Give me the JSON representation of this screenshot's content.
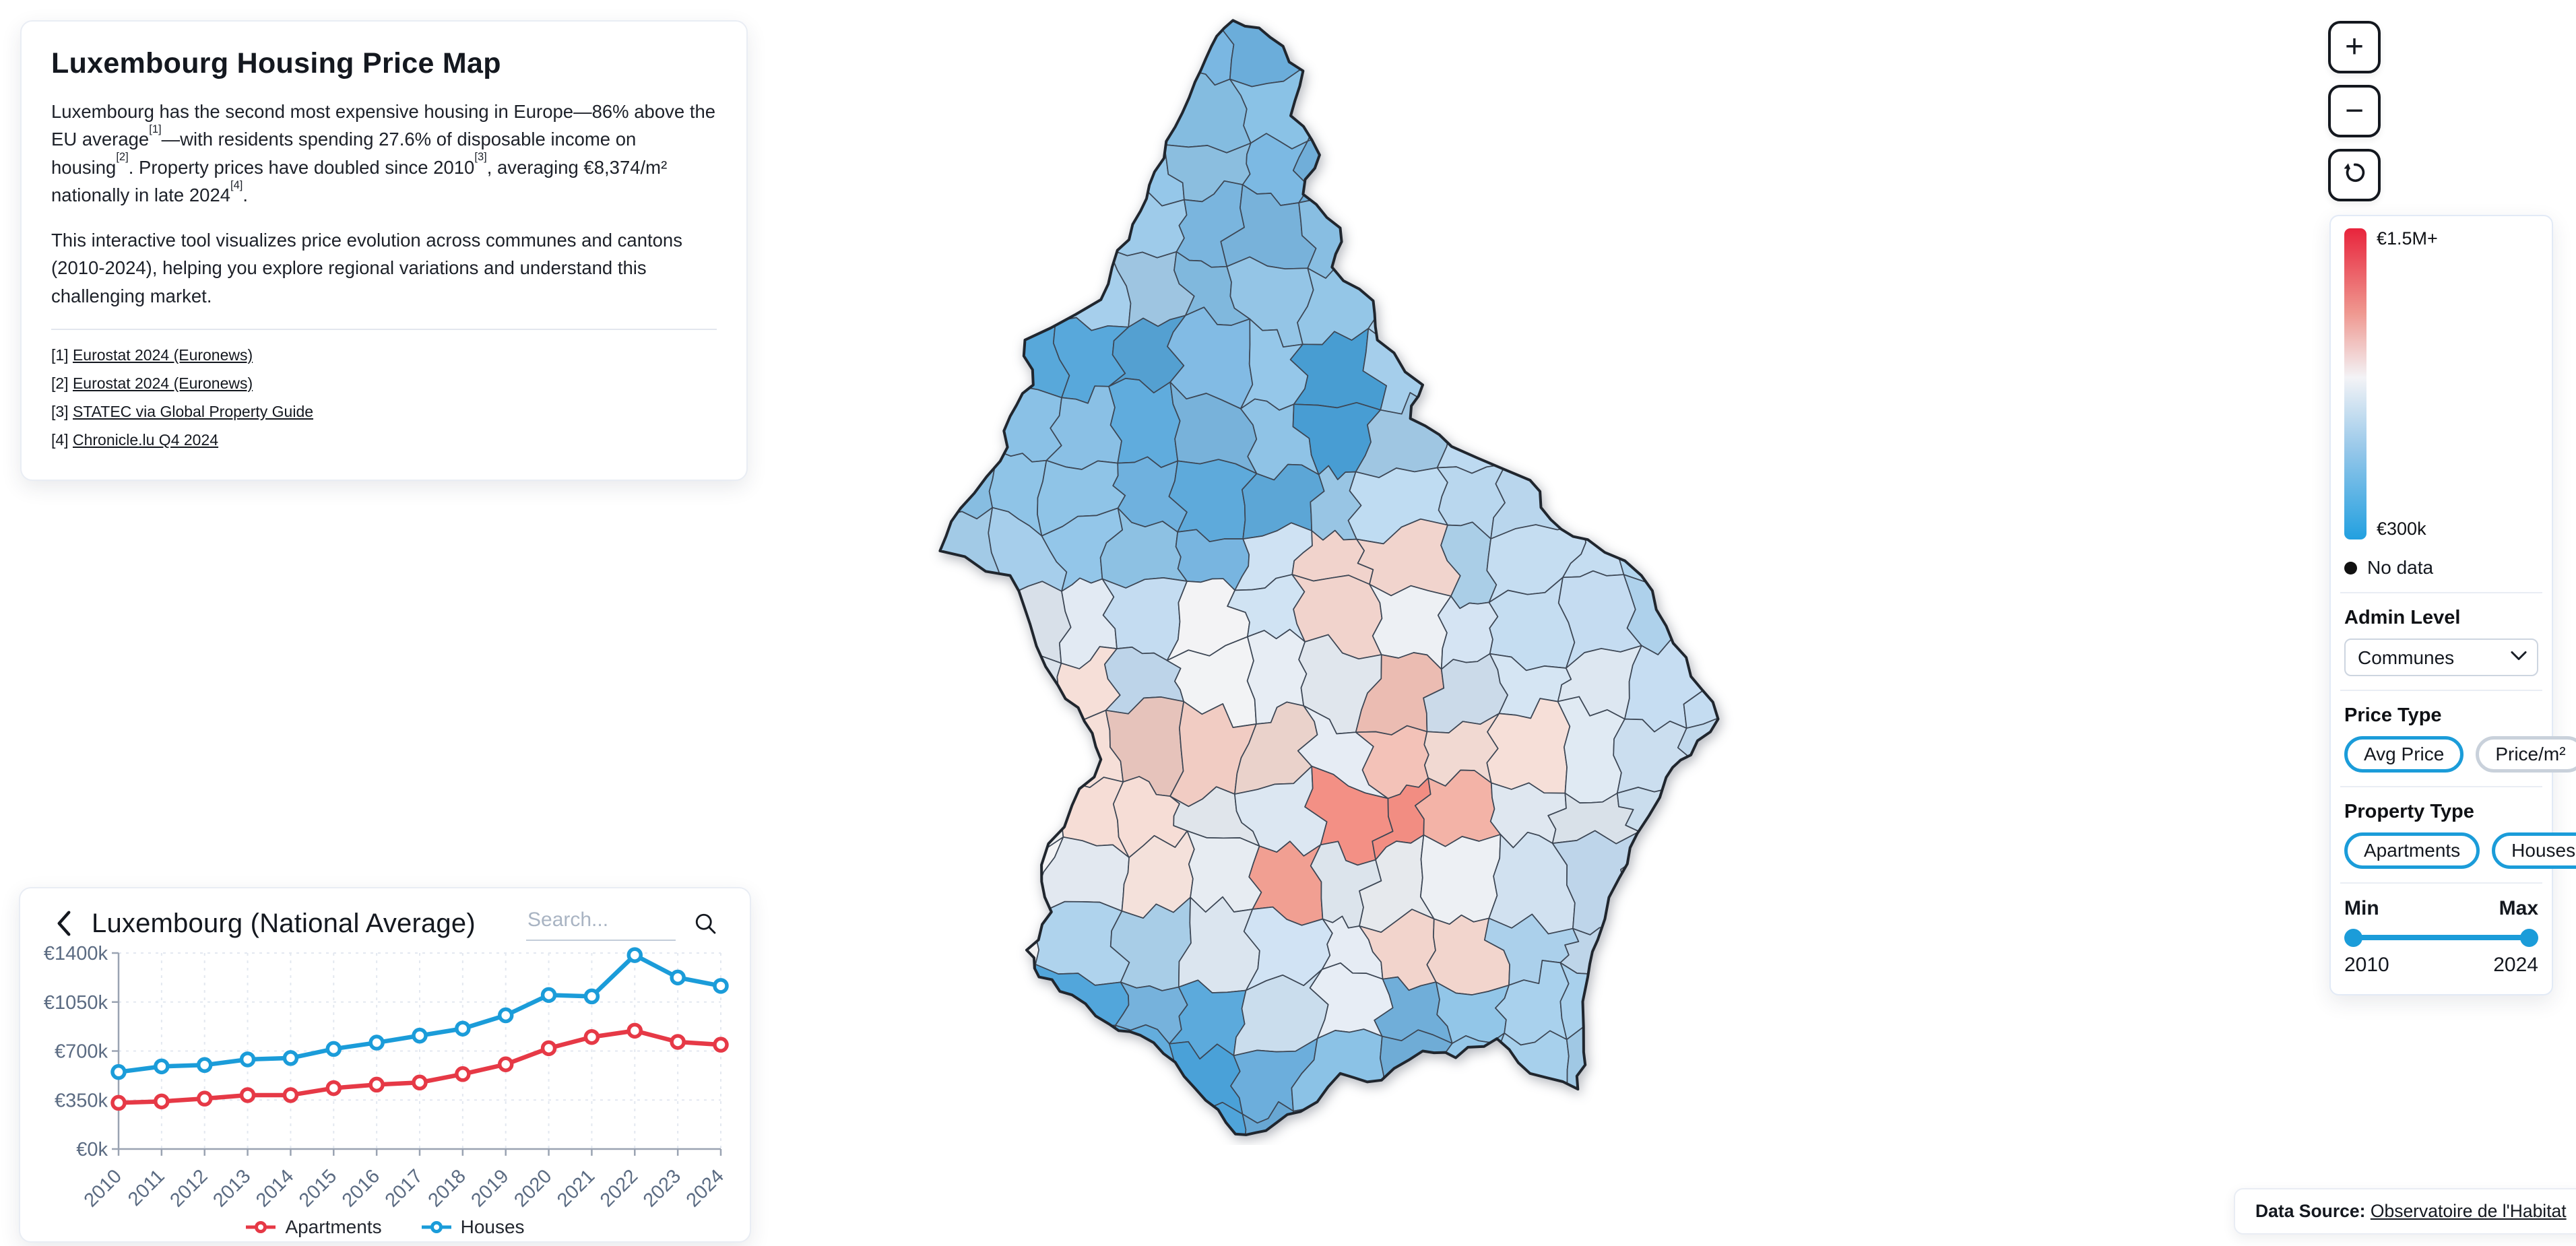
{
  "info_panel": {
    "title": "Luxembourg Housing Price Map",
    "paragraph1_segments": [
      {
        "text": "Luxembourg has the second most expensive housing in Europe—86% above the EU average"
      },
      {
        "sup": "[1]"
      },
      {
        "text": "—with residents spending 27.6% of disposable income on housing"
      },
      {
        "sup": "[2]"
      },
      {
        "text": ". Property prices have doubled since 2010"
      },
      {
        "sup": "[3]"
      },
      {
        "text": ", averaging €8,374/m² nationally in late 2024"
      },
      {
        "sup": "[4]"
      },
      {
        "text": "."
      }
    ],
    "paragraph2": "This interactive tool visualizes price evolution across communes and cantons (2010-2024), helping you explore regional variations and understand this challenging market.",
    "footnotes": [
      {
        "marker": "[1]",
        "label": "Eurostat 2024 (Euronews)"
      },
      {
        "marker": "[2]",
        "label": "Eurostat 2024 (Euronews)"
      },
      {
        "marker": "[3]",
        "label": "STATEC via Global Property Guide"
      },
      {
        "marker": "[4]",
        "label": "Chronicle.lu Q4 2024"
      }
    ]
  },
  "zoom_controls": {
    "zoom_in": "+",
    "zoom_out": "−"
  },
  "legend": {
    "scale": {
      "top_label": "€1.5M+",
      "bottom_label": "€300k",
      "gradient_stops": [
        [
          "#e8243c",
          0
        ],
        [
          "#ef978f",
          27
        ],
        [
          "#f3f3f6",
          48
        ],
        [
          "#93c6e9",
          72
        ],
        [
          "#22a0e0",
          100
        ]
      ]
    },
    "no_data": {
      "label": "No data",
      "dot_color": "#111111"
    },
    "admin_level": {
      "label": "Admin Level",
      "value": "Communes"
    },
    "price_type": {
      "label": "Price Type",
      "options": [
        {
          "label": "Avg Price",
          "active": true
        },
        {
          "label": "Price/m²",
          "active": false
        }
      ]
    },
    "property_type": {
      "label": "Property Type",
      "options": [
        {
          "label": "Apartments",
          "active": true
        },
        {
          "label": "Houses",
          "active": true
        }
      ]
    },
    "year_range": {
      "min_label": "Min",
      "max_label": "Max",
      "min_value": "2010",
      "max_value": "2024"
    }
  },
  "chart_panel": {
    "title": "Luxembourg (National Average)",
    "search_placeholder": "Search..."
  },
  "chart_data": {
    "type": "line",
    "title": "Luxembourg (National Average)",
    "x": [
      2010,
      2011,
      2012,
      2013,
      2014,
      2015,
      2016,
      2017,
      2018,
      2019,
      2020,
      2021,
      2022,
      2023,
      2024
    ],
    "yticks": [
      0,
      350,
      700,
      1050,
      1400
    ],
    "ytick_format": "€{v}k",
    "ylim": [
      0,
      1400
    ],
    "unit": "thousand EUR",
    "grid": true,
    "legend_position": "bottom",
    "series": [
      {
        "name": "Apartments",
        "color": "#e63946",
        "values": [
          330,
          340,
          360,
          385,
          385,
          435,
          460,
          475,
          535,
          605,
          720,
          800,
          845,
          765,
          745
        ]
      },
      {
        "name": "Houses",
        "color": "#1b9cd9",
        "values": [
          550,
          590,
          600,
          640,
          650,
          715,
          760,
          810,
          860,
          955,
          1100,
          1090,
          1385,
          1225,
          1165
        ]
      }
    ]
  },
  "footer": {
    "prefix": "Data Source:",
    "link_label": "Observatoire de l'Habitat"
  },
  "map": {
    "outline_color": "#20262e",
    "cell_border_color": "#3c4654",
    "color_points": [
      [
        0.33,
        0.04,
        "#79b7e2"
      ],
      [
        0.42,
        0.05,
        "#6db0de"
      ],
      [
        0.38,
        0.1,
        "#87c0e5"
      ],
      [
        0.46,
        0.12,
        "#79b7e2"
      ],
      [
        0.3,
        0.12,
        "#90c5e8"
      ],
      [
        0.26,
        0.19,
        "#9ccaea"
      ],
      [
        0.37,
        0.18,
        "#7db9e3"
      ],
      [
        0.47,
        0.2,
        "#8ac1e6"
      ],
      [
        0.52,
        0.17,
        "#74b4e0"
      ],
      [
        0.24,
        0.26,
        "#a6cfec"
      ],
      [
        0.35,
        0.26,
        "#84bde4"
      ],
      [
        0.47,
        0.28,
        "#95c7e8"
      ],
      [
        0.56,
        0.26,
        "#b0d4ee"
      ],
      [
        0.22,
        0.33,
        "#58a8db"
      ],
      [
        0.33,
        0.34,
        "#7db9e3"
      ],
      [
        0.44,
        0.33,
        "#90c5e8"
      ],
      [
        0.5,
        0.36,
        "#4aa2d9"
      ],
      [
        0.58,
        0.35,
        "#a6cfec"
      ],
      [
        0.15,
        0.4,
        "#8ac1e6"
      ],
      [
        0.27,
        0.41,
        "#6db0de"
      ],
      [
        0.38,
        0.42,
        "#5fabdc"
      ],
      [
        0.5,
        0.44,
        "#9ccaea"
      ],
      [
        0.62,
        0.42,
        "#bcdaf1"
      ],
      [
        0.1,
        0.49,
        "#a6cfec"
      ],
      [
        0.21,
        0.49,
        "#90c5e8"
      ],
      [
        0.32,
        0.5,
        "#79b7e2"
      ],
      [
        0.43,
        0.52,
        "#cfe2f3"
      ],
      [
        0.54,
        0.5,
        "#f1d3cc"
      ],
      [
        0.65,
        0.5,
        "#aed3ed"
      ],
      [
        0.76,
        0.53,
        "#c4dcf1"
      ],
      [
        0.86,
        0.56,
        "#b0d4ee"
      ],
      [
        0.14,
        0.57,
        "#e2eaf3"
      ],
      [
        0.25,
        0.57,
        "#c4dcf1"
      ],
      [
        0.36,
        0.57,
        "#f2f3f5"
      ],
      [
        0.47,
        0.58,
        "#e6ecf4"
      ],
      [
        0.58,
        0.57,
        "#edf0f4"
      ],
      [
        0.7,
        0.58,
        "#d4e4f3"
      ],
      [
        0.1,
        0.64,
        "#edf0f4"
      ],
      [
        0.2,
        0.64,
        "#f6ddd6"
      ],
      [
        0.3,
        0.65,
        "#f2cdc4"
      ],
      [
        0.4,
        0.64,
        "#f6ddd6"
      ],
      [
        0.5,
        0.64,
        "#e6ecf4"
      ],
      [
        0.6,
        0.63,
        "#f4c3b9"
      ],
      [
        0.7,
        0.64,
        "#f6ddd6"
      ],
      [
        0.8,
        0.63,
        "#dfe9f3"
      ],
      [
        0.89,
        0.62,
        "#c4dcf1"
      ],
      [
        0.15,
        0.72,
        "#f2f3f5"
      ],
      [
        0.25,
        0.72,
        "#f6ddd6"
      ],
      [
        0.34,
        0.73,
        "#e9eef4"
      ],
      [
        0.44,
        0.71,
        "#dce7f2"
      ],
      [
        0.55,
        0.71,
        "#f28b80"
      ],
      [
        0.66,
        0.71,
        "#f5b5a9"
      ],
      [
        0.76,
        0.71,
        "#e2eaf3"
      ],
      [
        0.86,
        0.7,
        "#cfe2f3"
      ],
      [
        0.2,
        0.78,
        "#e6ecf4"
      ],
      [
        0.3,
        0.79,
        "#f6e3dd"
      ],
      [
        0.4,
        0.785,
        "#f7a396"
      ],
      [
        0.5,
        0.78,
        "#e2eaf3"
      ],
      [
        0.6,
        0.78,
        "#edf0f4"
      ],
      [
        0.7,
        0.78,
        "#d4e4f3"
      ],
      [
        0.8,
        0.77,
        "#c4dcf1"
      ],
      [
        0.13,
        0.84,
        "#f2f3f5"
      ],
      [
        0.23,
        0.85,
        "#abd1ec"
      ],
      [
        0.33,
        0.85,
        "#dfe9f3"
      ],
      [
        0.43,
        0.85,
        "#cfe2f3"
      ],
      [
        0.53,
        0.85,
        "#e6ecf4"
      ],
      [
        0.62,
        0.845,
        "#f2d4cc"
      ],
      [
        0.72,
        0.85,
        "#abd1ec"
      ],
      [
        0.82,
        0.82,
        "#c4dcf1"
      ],
      [
        0.17,
        0.89,
        "#4aa2d9"
      ],
      [
        0.27,
        0.91,
        "#79b7e2"
      ],
      [
        0.37,
        0.92,
        "#58a8db"
      ],
      [
        0.47,
        0.92,
        "#8ac1e6"
      ],
      [
        0.57,
        0.93,
        "#74b4e0"
      ],
      [
        0.67,
        0.93,
        "#90c5e8"
      ],
      [
        0.76,
        0.9,
        "#a6cfec"
      ],
      [
        0.24,
        0.96,
        "#5fabdc"
      ],
      [
        0.34,
        0.975,
        "#4aa2d9"
      ],
      [
        0.45,
        0.97,
        "#6db0de"
      ],
      [
        0.55,
        0.97,
        "#84bde4"
      ],
      [
        0.64,
        0.975,
        "#79b7e2"
      ]
    ]
  }
}
